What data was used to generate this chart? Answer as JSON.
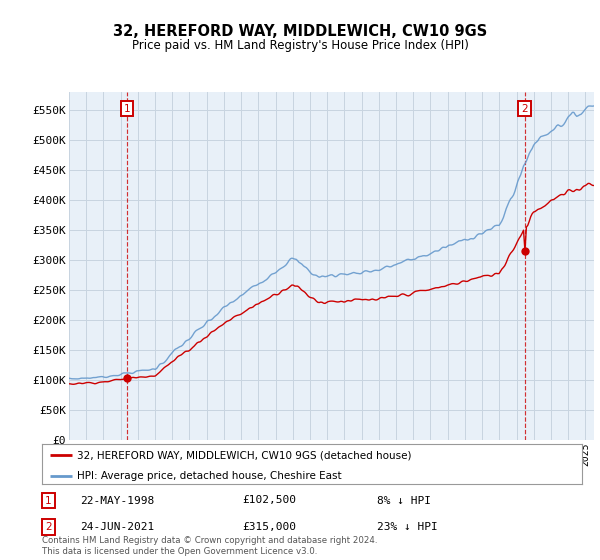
{
  "title": "32, HEREFORD WAY, MIDDLEWICH, CW10 9GS",
  "subtitle": "Price paid vs. HM Land Registry's House Price Index (HPI)",
  "legend_line1": "32, HEREFORD WAY, MIDDLEWICH, CW10 9GS (detached house)",
  "legend_line2": "HPI: Average price, detached house, Cheshire East",
  "annotation1_date": "22-MAY-1998",
  "annotation1_price": "£102,500",
  "annotation1_hpi": "8% ↓ HPI",
  "annotation1_year": 1998.38,
  "annotation1_value": 102500,
  "annotation2_date": "24-JUN-2021",
  "annotation2_price": "£315,000",
  "annotation2_hpi": "23% ↓ HPI",
  "annotation2_year": 2021.47,
  "annotation2_value": 315000,
  "footer": "Contains HM Land Registry data © Crown copyright and database right 2024.\nThis data is licensed under the Open Government Licence v3.0.",
  "red_color": "#cc0000",
  "blue_color": "#6699cc",
  "chart_bg": "#e8f0f8",
  "background_color": "#ffffff",
  "grid_color": "#c8d4e0",
  "ylim": [
    0,
    580000
  ],
  "yticks": [
    0,
    50000,
    100000,
    150000,
    200000,
    250000,
    300000,
    350000,
    400000,
    450000,
    500000,
    550000
  ],
  "ytick_labels": [
    "£0",
    "£50K",
    "£100K",
    "£150K",
    "£200K",
    "£250K",
    "£300K",
    "£350K",
    "£400K",
    "£450K",
    "£500K",
    "£550K"
  ]
}
